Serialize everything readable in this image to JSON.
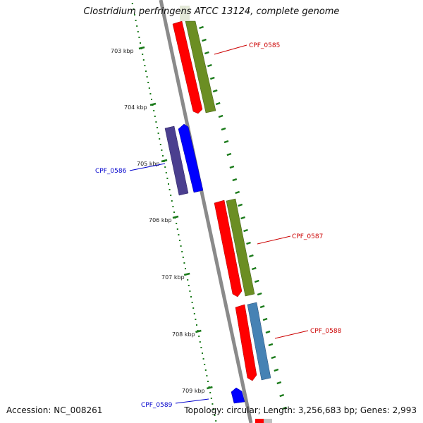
{
  "title": "Clostridium perfringens ATCC 13124, complete genome",
  "footer": {
    "accession": "Accession: NC_008261",
    "summary": "Topology: circular; Length: 3,256,683 bp; Genes: 2,993"
  },
  "scale_labels": [
    "703 kbp",
    "704 kbp",
    "705 kbp",
    "706 kbp",
    "707 kbp",
    "708 kbp",
    "709 kbp"
  ],
  "gene_labels": [
    {
      "id": "CPF_0585",
      "color": "#cc0000"
    },
    {
      "id": "CPF_0586",
      "color": "#0000cc"
    },
    {
      "id": "CPF_0587",
      "color": "#cc0000"
    },
    {
      "id": "CPF_0588",
      "color": "#cc0000"
    },
    {
      "id": "CPF_0589",
      "color": "#0000cc"
    }
  ],
  "colors": {
    "forward_gene": "#ff0000",
    "reverse_gene": "#0000ff",
    "olive_feature": "#6b8e23",
    "slate_feature": "#4b3f8f",
    "steel_feature": "#4682b4",
    "backbone": "#8a8a8a",
    "tick": "#1a7a1a",
    "label_text": "#222222"
  }
}
